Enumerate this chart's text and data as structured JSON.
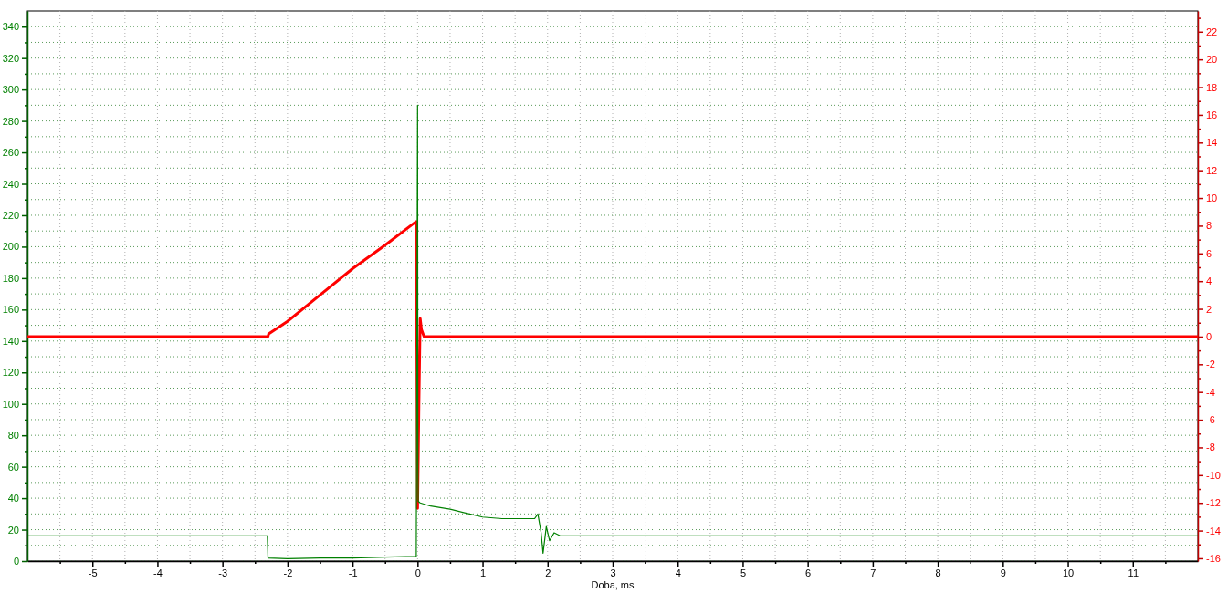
{
  "chart_data": {
    "type": "line",
    "xlabel": "Doba, ms",
    "xlim": [
      -6,
      12
    ],
    "xticks": [
      {
        "value": -5.5,
        "label": null
      },
      -5,
      {
        "value": -4.5,
        "label": null
      },
      -4,
      {
        "value": -3.5,
        "label": null
      },
      -3,
      {
        "value": -2.5,
        "label": null
      },
      -2,
      {
        "value": -1.5,
        "label": null
      },
      -1,
      {
        "value": -0.5,
        "label": null
      },
      0,
      {
        "value": 0.5,
        "label": null
      },
      1,
      {
        "value": 1.5,
        "label": null
      },
      2,
      {
        "value": 2.5,
        "label": null
      },
      3,
      {
        "value": 3.5,
        "label": null
      },
      4,
      {
        "value": 4.5,
        "label": null
      },
      5,
      {
        "value": 5.5,
        "label": null
      },
      6,
      {
        "value": 6.5,
        "label": null
      },
      7,
      {
        "value": 7.5,
        "label": null
      },
      8,
      {
        "value": 8.5,
        "label": null
      },
      9,
      {
        "value": 9.5,
        "label": null
      },
      10,
      {
        "value": 10.5,
        "label": null
      },
      11,
      {
        "value": 11.5,
        "label": null
      }
    ],
    "ylim": [
      0,
      350
    ],
    "yticks": [
      0,
      {
        "value": 10,
        "label": null
      },
      20,
      {
        "value": 30,
        "label": null
      },
      40,
      {
        "value": 50,
        "label": null
      },
      60,
      {
        "value": 70,
        "label": null
      },
      80,
      {
        "value": 90,
        "label": null
      },
      100,
      {
        "value": 110,
        "label": null
      },
      120,
      {
        "value": 130,
        "label": null
      },
      140,
      {
        "value": 150,
        "label": null
      },
      160,
      {
        "value": 170,
        "label": null
      },
      180,
      {
        "value": 190,
        "label": null
      },
      200,
      {
        "value": 210,
        "label": null
      },
      220,
      {
        "value": 230,
        "label": null
      },
      240,
      {
        "value": 250,
        "label": null
      },
      260,
      {
        "value": 270,
        "label": null
      },
      280,
      {
        "value": 290,
        "label": null
      },
      300,
      {
        "value": 310,
        "label": null
      },
      320,
      {
        "value": 330,
        "label": null
      },
      340
    ],
    "y2lim": [
      -16.2,
      23.5
    ],
    "y2ticks": [
      -16,
      {
        "value": -15,
        "label": null
      },
      -14,
      {
        "value": -13,
        "label": null
      },
      -12,
      {
        "value": -11,
        "label": null
      },
      -10,
      {
        "value": -9,
        "label": null
      },
      -8,
      {
        "value": -7,
        "label": null
      },
      -6,
      {
        "value": -5,
        "label": null
      },
      -4,
      {
        "value": -3,
        "label": null
      },
      -2,
      {
        "value": -1,
        "label": null
      },
      0,
      {
        "value": 1,
        "label": null
      },
      2,
      {
        "value": 3,
        "label": null
      },
      4,
      {
        "value": 5,
        "label": null
      },
      6,
      {
        "value": 7,
        "label": null
      },
      8,
      {
        "value": 9,
        "label": null
      },
      10,
      {
        "value": 11,
        "label": null
      },
      12,
      {
        "value": 13,
        "label": null
      },
      14,
      {
        "value": 15,
        "label": null
      },
      16,
      {
        "value": 17,
        "label": null
      },
      18,
      {
        "value": 19,
        "label": null
      },
      20,
      {
        "value": 21,
        "label": null
      },
      22,
      {
        "value": 23,
        "label": null
      }
    ],
    "grid": true,
    "series": [
      {
        "color": "#008000",
        "x": [
          -6,
          -5,
          -4,
          -3,
          -2.31,
          -2.3,
          -2,
          -1.5,
          -1,
          -0.5,
          -0.02,
          0,
          0.005,
          0.01,
          0.04,
          0.2,
          0.5,
          0.8,
          1,
          1.3,
          1.5,
          1.8,
          1.85,
          1.9,
          1.93,
          1.98,
          2.03,
          2.1,
          2.2,
          3,
          5,
          7,
          9,
          11,
          12
        ],
        "values": [
          16,
          16,
          16,
          16,
          16,
          2,
          1.5,
          2,
          2,
          2.5,
          3,
          290,
          60,
          38,
          37,
          35,
          33,
          30,
          28,
          27,
          27,
          27,
          30,
          18,
          5,
          22,
          13,
          18,
          16,
          16,
          16,
          16,
          16,
          16,
          16
        ]
      },
      {
        "color": "#ff0000",
        "axis": "y2",
        "x": [
          -6,
          -4,
          -2.3,
          -2.29,
          -2,
          -1.5,
          -1,
          -0.5,
          -0.05,
          -0.02,
          0,
          0.02,
          0.04,
          0.06,
          0.1,
          2,
          4,
          6,
          8,
          10,
          12
        ],
        "values": [
          0,
          0,
          0,
          0.2,
          1.1,
          3.0,
          4.9,
          6.6,
          8.2,
          8.3,
          -12.4,
          -5,
          1.3,
          0.5,
          0,
          0,
          0,
          0,
          0,
          0,
          0
        ]
      }
    ]
  }
}
